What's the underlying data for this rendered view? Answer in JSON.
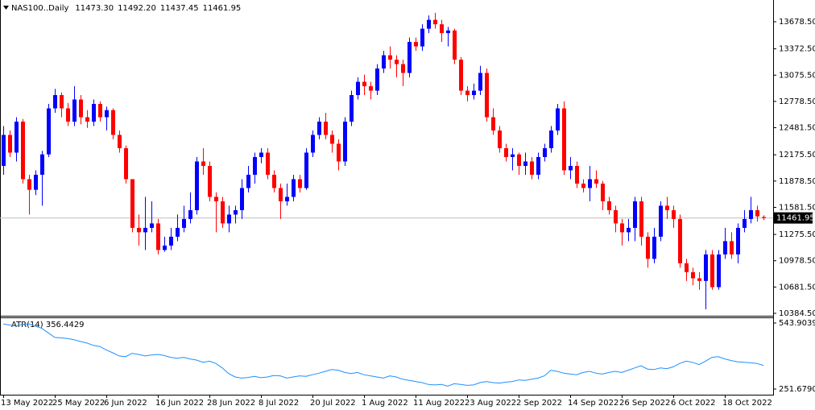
{
  "chart_data": [
    {
      "type": "candlestick",
      "title": "NAS100..Daily",
      "header_values": [
        "11473.30",
        "11492.20",
        "11437.45",
        "11461.95"
      ],
      "up_color": "#0000ff",
      "down_color": "#ff0000",
      "current_price": 11461.95,
      "categories": [
        "13 May 2022",
        null,
        null,
        null,
        null,
        null,
        null,
        null,
        "25 May 2022",
        null,
        null,
        null,
        null,
        null,
        null,
        null,
        "6 Jun 2022",
        null,
        null,
        null,
        null,
        null,
        null,
        null,
        "16 Jun 2022",
        null,
        null,
        null,
        null,
        null,
        null,
        null,
        "28 Jun 2022",
        null,
        null,
        null,
        null,
        null,
        null,
        null,
        "8 Jul 2022",
        null,
        null,
        null,
        null,
        null,
        null,
        null,
        "20 Jul 2022",
        null,
        null,
        null,
        null,
        null,
        null,
        null,
        "1 Aug 2022",
        null,
        null,
        null,
        null,
        null,
        null,
        null,
        "11 Aug 2022",
        null,
        null,
        null,
        null,
        null,
        null,
        null,
        "23 Aug 2022",
        null,
        null,
        null,
        null,
        null,
        null,
        null,
        "2 Sep 2022",
        null,
        null,
        null,
        null,
        null,
        null,
        null,
        "14 Sep 2022",
        null,
        null,
        null,
        null,
        null,
        null,
        null,
        "26 Sep 2022",
        null,
        null,
        null,
        null,
        null,
        null,
        null,
        "6 Oct 2022",
        null,
        null,
        null,
        null,
        null,
        null,
        null,
        "18 Oct 2022",
        null,
        null,
        null,
        null,
        null,
        null
      ],
      "open": [
        12050,
        12400,
        12200,
        12550,
        11900,
        11780,
        11950,
        12180,
        12700,
        12850,
        12700,
        12550,
        12800,
        12600,
        12550,
        12750,
        12600,
        12680,
        12400,
        12250,
        11900,
        11350,
        11300,
        11350,
        11400,
        11100,
        11150,
        11250,
        11350,
        11450,
        11550,
        12100,
        12050,
        11700,
        11650,
        11400,
        11500,
        11550,
        11800,
        11950,
        12150,
        12200,
        11950,
        11800,
        11650,
        11700,
        11900,
        11800,
        12200,
        12400,
        12550,
        12400,
        12300,
        12100,
        12550,
        12850,
        13000,
        12950,
        12900,
        13150,
        13300,
        13250,
        13200,
        13100,
        13450,
        13400,
        13600,
        13700,
        13650,
        13550,
        13580,
        13250,
        12900,
        12850,
        12900,
        13100,
        12600,
        12450,
        12250,
        12150,
        12180,
        12050,
        12100,
        11950,
        12150,
        12250,
        12450,
        12700,
        12000,
        12050,
        11850,
        11800,
        11900,
        11850,
        11650,
        11550,
        11400,
        11300,
        11350,
        11650,
        11250,
        11000,
        11250,
        11600,
        11550,
        11450,
        10950,
        10850,
        10780,
        10750,
        11050,
        10680,
        11050,
        11200,
        11050,
        11350,
        11450,
        11550,
        11473.3
      ],
      "high": [
        12500,
        12450,
        12600,
        12580,
        11950,
        12000,
        12220,
        12750,
        12920,
        12880,
        12760,
        12950,
        12850,
        12680,
        12800,
        12780,
        12720,
        12700,
        12450,
        12280,
        11900,
        11500,
        11700,
        11650,
        11450,
        11250,
        11350,
        11500,
        11600,
        11750,
        12150,
        12250,
        12100,
        11750,
        11700,
        11600,
        11600,
        11900,
        12050,
        12200,
        12250,
        12250,
        12000,
        11850,
        11850,
        11950,
        11950,
        12250,
        12450,
        12600,
        12650,
        12450,
        12350,
        12600,
        12900,
        13050,
        13080,
        13000,
        13200,
        13350,
        13400,
        13300,
        13250,
        13500,
        13500,
        13650,
        13750,
        13780,
        13700,
        13620,
        13600,
        13280,
        12950,
        12980,
        13180,
        13150,
        12700,
        12500,
        12300,
        12250,
        12200,
        12200,
        12150,
        12200,
        12300,
        12500,
        12750,
        12780,
        12150,
        12100,
        11900,
        12050,
        12000,
        11880,
        11700,
        11600,
        11450,
        11450,
        11700,
        11700,
        11300,
        11350,
        11650,
        11700,
        11600,
        11500,
        11000,
        10900,
        10850,
        11100,
        11100,
        11100,
        11350,
        11300,
        11400,
        11550,
        11700,
        11600,
        11492.2
      ],
      "low": [
        11950,
        12150,
        12100,
        11850,
        11500,
        11720,
        11600,
        12150,
        12650,
        12600,
        12500,
        12500,
        12520,
        12480,
        12500,
        12550,
        12450,
        12350,
        12200,
        11850,
        11300,
        11150,
        11100,
        11300,
        11050,
        11080,
        11100,
        11200,
        11300,
        11400,
        11500,
        11950,
        11650,
        11300,
        11350,
        11300,
        11400,
        11450,
        11750,
        11850,
        12080,
        11900,
        11750,
        11450,
        11600,
        11650,
        11750,
        11780,
        12150,
        12350,
        12350,
        12200,
        12000,
        12050,
        12500,
        12800,
        12850,
        12800,
        12850,
        13100,
        13150,
        13050,
        12950,
        13050,
        13350,
        13350,
        13550,
        13600,
        13450,
        13400,
        13200,
        12850,
        12780,
        12800,
        12850,
        12550,
        12400,
        12200,
        12100,
        12000,
        11950,
        11950,
        11900,
        11900,
        12100,
        12200,
        12400,
        11950,
        11900,
        11800,
        11750,
        11650,
        11800,
        11550,
        11500,
        11300,
        11150,
        11200,
        11200,
        11150,
        10900,
        10950,
        11200,
        11450,
        11350,
        10900,
        10750,
        10700,
        10650,
        10430,
        10650,
        10650,
        11000,
        11000,
        10950,
        11300,
        11400,
        11420,
        11437.45
      ],
      "close": [
        12400,
        12200,
        12550,
        11900,
        11780,
        11950,
        12180,
        12700,
        12850,
        12700,
        12550,
        12800,
        12600,
        12550,
        12750,
        12600,
        12680,
        12400,
        12250,
        11900,
        11350,
        11300,
        11350,
        11400,
        11100,
        11150,
        11250,
        11350,
        11450,
        11550,
        12100,
        12050,
        11700,
        11650,
        11400,
        11500,
        11550,
        11800,
        11950,
        12150,
        12200,
        11950,
        11800,
        11650,
        11700,
        11900,
        11800,
        12200,
        12400,
        12550,
        12400,
        12300,
        12100,
        12550,
        12850,
        13000,
        12950,
        12900,
        13150,
        13300,
        13250,
        13200,
        13100,
        13450,
        13400,
        13600,
        13700,
        13650,
        13550,
        13580,
        13250,
        12900,
        12850,
        12900,
        13100,
        12600,
        12450,
        12250,
        12150,
        12180,
        12050,
        12100,
        11950,
        12150,
        12250,
        12450,
        12700,
        12000,
        12050,
        11850,
        11800,
        11900,
        11850,
        11650,
        11550,
        11400,
        11300,
        11350,
        11650,
        11250,
        11000,
        11250,
        11600,
        11550,
        11450,
        10950,
        10850,
        10780,
        10750,
        11050,
        10680,
        11050,
        11200,
        11050,
        11350,
        11450,
        11550,
        11480,
        11461.95
      ],
      "ylim": [
        10357,
        13906
      ],
      "yticks": [
        {
          "value": 13678.5,
          "label": "13678.50"
        },
        {
          "value": 13372.5,
          "label": "13372.50"
        },
        {
          "value": 13075.5,
          "label": "13075.50"
        },
        {
          "value": 12778.5,
          "label": "12778.50"
        },
        {
          "value": 12481.5,
          "label": "12481.50"
        },
        {
          "value": 12175.5,
          "label": "12175.50"
        },
        {
          "value": 11878.5,
          "label": "11878.50"
        },
        {
          "value": 11581.5,
          "label": "11581.50"
        },
        {
          "value": 11275.5,
          "label": "11275.50"
        },
        {
          "value": 10978.5,
          "label": "10978.50"
        },
        {
          "value": 10681.5,
          "label": "10681.50"
        },
        {
          "value": 10384.5,
          "label": "10384.50"
        }
      ]
    },
    {
      "type": "line",
      "title": "ATR(14) 356.4429",
      "color": "#1e90ff",
      "values": [
        540,
        535,
        530,
        538,
        540,
        530,
        520,
        500,
        480,
        478,
        475,
        470,
        462,
        455,
        445,
        440,
        425,
        412,
        398,
        395,
        410,
        405,
        398,
        402,
        405,
        400,
        392,
        388,
        392,
        385,
        380,
        370,
        375,
        365,
        345,
        320,
        305,
        300,
        303,
        308,
        302,
        305,
        312,
        310,
        300,
        305,
        310,
        308,
        315,
        322,
        330,
        338,
        335,
        325,
        320,
        325,
        315,
        310,
        305,
        300,
        310,
        305,
        295,
        290,
        285,
        280,
        272,
        270,
        272,
        265,
        275,
        272,
        268,
        270,
        280,
        285,
        280,
        278,
        282,
        285,
        292,
        290,
        295,
        300,
        310,
        335,
        330,
        322,
        318,
        315,
        325,
        330,
        322,
        318,
        325,
        330,
        325,
        335,
        345,
        355,
        340,
        338,
        345,
        342,
        350,
        365,
        375,
        370,
        360,
        375,
        392,
        395,
        385,
        378,
        372,
        370,
        368,
        365,
        356.4429
      ],
      "ylim": [
        226.7,
        565.3
      ],
      "yticks": [
        543.9039,
        {
          "value": 251.679,
          "label": "251.6790"
        }
      ]
    }
  ]
}
